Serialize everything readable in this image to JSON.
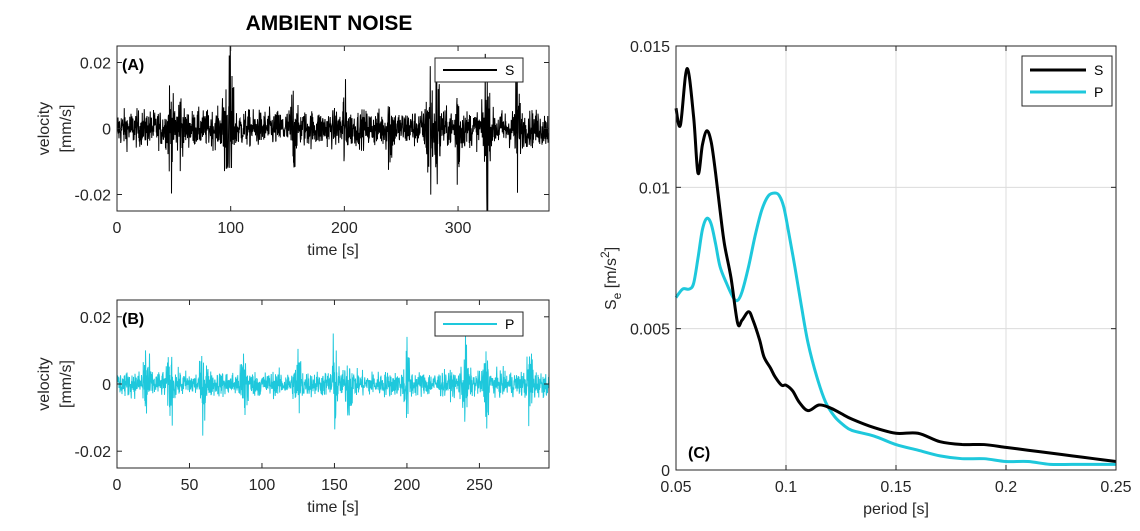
{
  "title": "AMBIENT NOISE",
  "colors": {
    "S": "#000000",
    "P": "#1ec8dc",
    "grid": "#dcdcdc",
    "axis": "#262626"
  },
  "chart_data": [
    {
      "panel": "(A)",
      "type": "line",
      "xlabel": "time [s]",
      "ylabel": "velocity\n[mm/s]",
      "ylabel_lines": [
        "velocity",
        "[mm/s]"
      ],
      "xlim": [
        0,
        380
      ],
      "ylim": [
        -0.025,
        0.025
      ],
      "xticks": [
        0,
        100,
        200,
        300
      ],
      "xtick_labels": [
        "0",
        "100",
        "200",
        "300"
      ],
      "yticks": [
        -0.02,
        0,
        0.02
      ],
      "ytick_labels": [
        "-0.02",
        "0",
        "0.02"
      ],
      "legend": "top-right",
      "series": [
        {
          "name": "S",
          "color": "#000000",
          "kind": "noise",
          "base_amplitude": 0.006
        }
      ],
      "bursts": [
        {
          "x": 100,
          "amp": 0.028
        },
        {
          "x": 95,
          "amp": 0.015
        },
        {
          "x": 47,
          "amp": 0.013
        },
        {
          "x": 55,
          "amp": 0.012
        },
        {
          "x": 155,
          "amp": 0.012
        },
        {
          "x": 200,
          "amp": 0.011
        },
        {
          "x": 240,
          "amp": 0.012
        },
        {
          "x": 275,
          "amp": 0.03
        },
        {
          "x": 282,
          "amp": 0.022
        },
        {
          "x": 300,
          "amp": 0.018
        },
        {
          "x": 325,
          "amp": 0.026
        },
        {
          "x": 352,
          "amp": 0.02
        }
      ]
    },
    {
      "panel": "(B)",
      "type": "line",
      "xlabel": "time [s]",
      "ylabel": "velocity\n[mm/s]",
      "ylabel_lines": [
        "velocity",
        "[mm/s]"
      ],
      "xlim": [
        0,
        298
      ],
      "ylim": [
        -0.025,
        0.025
      ],
      "xticks": [
        0,
        50,
        100,
        150,
        200,
        250
      ],
      "xtick_labels": [
        "0",
        "50",
        "100",
        "150",
        "200",
        "250"
      ],
      "yticks": [
        -0.02,
        0,
        0.02
      ],
      "ytick_labels": [
        "-0.02",
        "0",
        "0.02"
      ],
      "legend": "top-right",
      "series": [
        {
          "name": "P",
          "color": "#1ec8dc",
          "kind": "noise",
          "base_amplitude": 0.004
        }
      ],
      "bursts": [
        {
          "x": 20,
          "amp": 0.014
        },
        {
          "x": 37,
          "amp": 0.009
        },
        {
          "x": 60,
          "amp": 0.01
        },
        {
          "x": 88,
          "amp": 0.012
        },
        {
          "x": 125,
          "amp": 0.01
        },
        {
          "x": 150,
          "amp": 0.013
        },
        {
          "x": 160,
          "amp": 0.009
        },
        {
          "x": 200,
          "amp": 0.01
        },
        {
          "x": 240,
          "amp": 0.011
        },
        {
          "x": 255,
          "amp": 0.009
        },
        {
          "x": 285,
          "amp": 0.012
        }
      ]
    },
    {
      "panel": "(C)",
      "type": "line",
      "xlabel": "period [s]",
      "ylabel_main": "S",
      "ylabel_sub": "e",
      "ylabel_unit": "[m/s",
      "ylabel_sup": "2",
      "ylabel_close": "]",
      "xlim": [
        0.05,
        0.25
      ],
      "ylim": [
        0,
        0.015
      ],
      "xticks": [
        0.05,
        0.1,
        0.15,
        0.2,
        0.25
      ],
      "xtick_labels": [
        "0.05",
        "0.1",
        "0.15",
        "0.2",
        "0.25"
      ],
      "yticks": [
        0,
        0.005,
        0.01,
        0.015
      ],
      "ytick_labels": [
        "0",
        "0.005",
        "0.01",
        "0.015"
      ],
      "grid": true,
      "legend": "top-right",
      "series": [
        {
          "name": "S",
          "color": "#000000",
          "x": [
            0.05,
            0.052,
            0.055,
            0.058,
            0.06,
            0.062,
            0.064,
            0.066,
            0.068,
            0.07,
            0.072,
            0.075,
            0.078,
            0.08,
            0.083,
            0.085,
            0.088,
            0.09,
            0.093,
            0.095,
            0.098,
            0.1,
            0.103,
            0.106,
            0.11,
            0.115,
            0.12,
            0.125,
            0.13,
            0.14,
            0.15,
            0.16,
            0.17,
            0.18,
            0.19,
            0.2,
            0.21,
            0.22,
            0.23,
            0.24,
            0.25
          ],
          "y": [
            0.0128,
            0.0122,
            0.0142,
            0.0125,
            0.0105,
            0.0115,
            0.012,
            0.0116,
            0.0105,
            0.0092,
            0.008,
            0.0068,
            0.0052,
            0.0053,
            0.0056,
            0.0053,
            0.0046,
            0.004,
            0.0036,
            0.0033,
            0.003,
            0.003,
            0.0028,
            0.0024,
            0.0021,
            0.0023,
            0.0022,
            0.002,
            0.0018,
            0.0015,
            0.0013,
            0.0013,
            0.001,
            0.0009,
            0.0009,
            0.0008,
            0.0007,
            0.0006,
            0.0005,
            0.0004,
            0.0003
          ]
        },
        {
          "name": "P",
          "color": "#1ec8dc",
          "x": [
            0.05,
            0.053,
            0.056,
            0.058,
            0.06,
            0.062,
            0.064,
            0.066,
            0.068,
            0.07,
            0.073,
            0.076,
            0.078,
            0.08,
            0.083,
            0.086,
            0.089,
            0.092,
            0.095,
            0.097,
            0.099,
            0.101,
            0.104,
            0.107,
            0.11,
            0.114,
            0.118,
            0.122,
            0.126,
            0.13,
            0.14,
            0.15,
            0.16,
            0.17,
            0.18,
            0.19,
            0.2,
            0.21,
            0.22,
            0.23,
            0.24,
            0.25
          ],
          "y": [
            0.0061,
            0.0064,
            0.0064,
            0.0066,
            0.0075,
            0.0085,
            0.0089,
            0.0087,
            0.008,
            0.0072,
            0.0066,
            0.0061,
            0.006,
            0.0063,
            0.0072,
            0.0083,
            0.0092,
            0.0097,
            0.0098,
            0.0097,
            0.0093,
            0.0085,
            0.0072,
            0.0058,
            0.0045,
            0.0033,
            0.0024,
            0.0019,
            0.0016,
            0.0014,
            0.0012,
            0.0009,
            0.0007,
            0.0005,
            0.0004,
            0.0004,
            0.0003,
            0.0003,
            0.0002,
            0.0002,
            0.0002,
            0.0002
          ]
        }
      ]
    }
  ]
}
